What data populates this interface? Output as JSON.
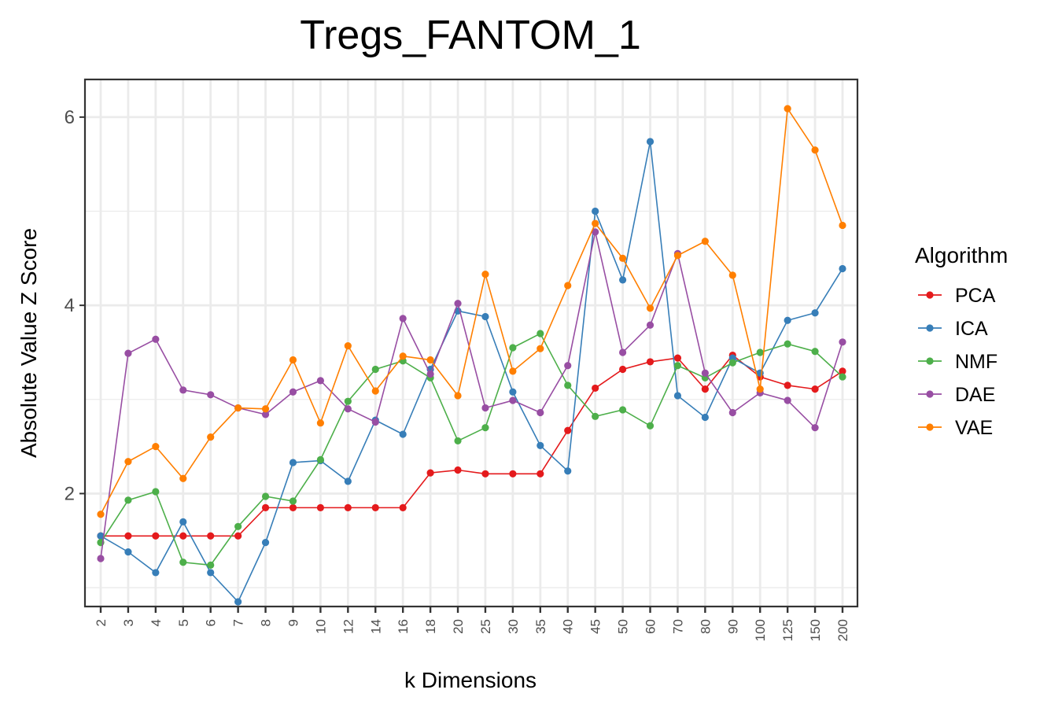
{
  "chart_data": {
    "type": "line",
    "title": "Tregs_FANTOM_1",
    "xlabel": "k Dimensions",
    "ylabel": "Absolute Value Z Score",
    "categories": [
      "2",
      "3",
      "4",
      "5",
      "6",
      "7",
      "8",
      "9",
      "10",
      "12",
      "14",
      "16",
      "18",
      "20",
      "25",
      "30",
      "35",
      "40",
      "45",
      "50",
      "60",
      "70",
      "80",
      "90",
      "100",
      "125",
      "150",
      "200"
    ],
    "ylim": [
      0.8,
      6.4
    ],
    "yticks": [
      2,
      4,
      6
    ],
    "yminor": [
      3,
      5
    ],
    "grid": true,
    "legend_title": "Algorithm",
    "legend_position": "right",
    "series": [
      {
        "name": "PCA",
        "color": "#E41A1C",
        "values": [
          1.55,
          1.55,
          1.55,
          1.55,
          1.55,
          1.55,
          1.85,
          1.85,
          1.85,
          1.85,
          1.85,
          1.85,
          2.22,
          2.25,
          2.21,
          2.21,
          2.21,
          2.67,
          3.12,
          3.32,
          3.4,
          3.44,
          3.11,
          3.47,
          3.24,
          3.15,
          3.11,
          3.3
        ]
      },
      {
        "name": "ICA",
        "color": "#377EB8",
        "values": [
          1.55,
          1.38,
          1.16,
          1.7,
          1.16,
          0.85,
          1.48,
          2.33,
          2.35,
          2.13,
          2.78,
          2.63,
          3.32,
          3.94,
          3.88,
          3.08,
          2.51,
          2.24,
          5.0,
          4.27,
          5.74,
          3.04,
          2.81,
          3.44,
          3.28,
          3.84,
          3.92,
          4.39
        ]
      },
      {
        "name": "NMF",
        "color": "#4DAF4A",
        "values": [
          1.48,
          1.93,
          2.02,
          1.27,
          1.24,
          1.65,
          1.97,
          1.92,
          2.36,
          2.98,
          3.32,
          3.41,
          3.23,
          2.56,
          2.7,
          3.55,
          3.7,
          3.15,
          2.82,
          2.89,
          2.72,
          3.36,
          3.23,
          3.39,
          3.5,
          3.59,
          3.51,
          3.24
        ]
      },
      {
        "name": "DAE",
        "color": "#984EA3",
        "values": [
          1.31,
          3.49,
          3.64,
          3.1,
          3.05,
          2.91,
          2.84,
          3.08,
          3.2,
          2.9,
          2.76,
          3.86,
          3.27,
          4.02,
          2.91,
          2.99,
          2.86,
          3.36,
          4.78,
          3.5,
          3.79,
          4.55,
          3.28,
          2.86,
          3.07,
          2.99,
          2.7,
          3.61
        ]
      },
      {
        "name": "VAE",
        "color": "#FF7F00",
        "values": [
          1.78,
          2.34,
          2.5,
          2.16,
          2.6,
          2.91,
          2.9,
          3.42,
          2.75,
          3.57,
          3.09,
          3.46,
          3.42,
          3.04,
          4.33,
          3.3,
          3.54,
          4.21,
          4.87,
          4.5,
          3.97,
          4.53,
          4.68,
          4.32,
          3.11,
          6.09,
          5.65,
          4.85
        ]
      }
    ]
  }
}
